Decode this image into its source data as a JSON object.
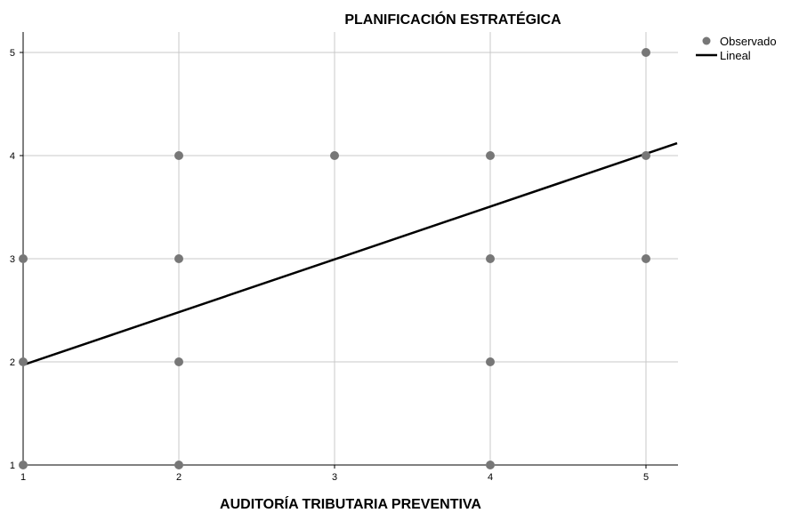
{
  "chart_data": {
    "type": "scatter",
    "title": "PLANIFICACIÓN ESTRATÉGICA",
    "xlabel": "AUDITORÍA TRIBUTARIA PREVENTIVA",
    "ylabel": "",
    "xlim": [
      1,
      5.2
    ],
    "ylim": [
      1,
      5.25
    ],
    "xticks": [
      1,
      2,
      3,
      4,
      5
    ],
    "yticks": [
      1,
      2,
      3,
      4,
      5
    ],
    "grid": true,
    "legend_position": "top-right",
    "colors": {
      "points": "#777777",
      "line": "#000000",
      "grid": "#c8c8c8",
      "axis": "#000000"
    },
    "series": [
      {
        "name": "Observado",
        "kind": "scatter",
        "points": [
          {
            "x": 1,
            "y": 1
          },
          {
            "x": 1,
            "y": 2
          },
          {
            "x": 1,
            "y": 3
          },
          {
            "x": 2,
            "y": 1
          },
          {
            "x": 2,
            "y": 2
          },
          {
            "x": 2,
            "y": 3
          },
          {
            "x": 2,
            "y": 4
          },
          {
            "x": 3,
            "y": 4
          },
          {
            "x": 4,
            "y": 1
          },
          {
            "x": 4,
            "y": 2
          },
          {
            "x": 4,
            "y": 3
          },
          {
            "x": 4,
            "y": 4
          },
          {
            "x": 5,
            "y": 3
          },
          {
            "x": 5,
            "y": 4
          },
          {
            "x": 5,
            "y": 5
          }
        ]
      },
      {
        "name": "Lineal",
        "kind": "line",
        "points": [
          {
            "x": 1,
            "y": 1.97
          },
          {
            "x": 5.2,
            "y": 4.12
          }
        ]
      }
    ]
  }
}
